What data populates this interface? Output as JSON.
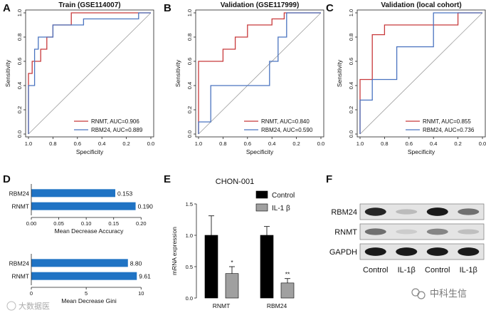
{
  "chart_data": [
    {
      "panel": "A",
      "type": "line",
      "title": "Train (GSE114007)",
      "xlabel": "Specificity",
      "ylabel": "Sensitivity",
      "xlim": [
        1.0,
        0.0
      ],
      "ylim": [
        0.0,
        1.0
      ],
      "xticks": [
        "1.0",
        "0.8",
        "0.6",
        "0.4",
        "0.2",
        "0.0"
      ],
      "yticks": [
        "0.0",
        "0.2",
        "0.4",
        "0.6",
        "0.8",
        "1.0"
      ],
      "legend_position": "bottom-right",
      "series": [
        {
          "name": "RNMT, AUC=0.906",
          "color": "#c8393b",
          "x": [
            1.0,
            1.0,
            0.97,
            0.97,
            0.9,
            0.9,
            0.85,
            0.85,
            0.8,
            0.8,
            0.65,
            0.65,
            0.0
          ],
          "y": [
            0.0,
            0.5,
            0.5,
            0.6,
            0.6,
            0.7,
            0.7,
            0.8,
            0.8,
            0.9,
            0.9,
            1.0,
            1.0
          ]
        },
        {
          "name": "RBM24, AUC=0.889",
          "color": "#4a73c0",
          "x": [
            1.0,
            1.0,
            0.95,
            0.95,
            0.92,
            0.92,
            0.8,
            0.8,
            0.55,
            0.55,
            0.1,
            0.1,
            0.0
          ],
          "y": [
            0.0,
            0.4,
            0.4,
            0.7,
            0.7,
            0.8,
            0.8,
            0.9,
            0.9,
            0.95,
            0.95,
            1.0,
            1.0
          ]
        }
      ]
    },
    {
      "panel": "B",
      "type": "line",
      "title": "Validation (GSE117999)",
      "xlabel": "Specificity",
      "ylabel": "Sensitivity",
      "xlim": [
        1.0,
        0.0
      ],
      "ylim": [
        0.0,
        1.0
      ],
      "xticks": [
        "1.0",
        "0.8",
        "0.6",
        "0.4",
        "0.2",
        "0.0"
      ],
      "yticks": [
        "0.0",
        "0.2",
        "0.4",
        "0.6",
        "0.8",
        "1.0"
      ],
      "legend_position": "bottom-right",
      "series": [
        {
          "name": "RNMT, AUC=0.840",
          "color": "#c8393b",
          "x": [
            1.0,
            1.0,
            0.8,
            0.8,
            0.7,
            0.7,
            0.6,
            0.6,
            0.4,
            0.4,
            0.3,
            0.3,
            0.0
          ],
          "y": [
            0.0,
            0.6,
            0.6,
            0.7,
            0.7,
            0.8,
            0.8,
            0.9,
            0.9,
            0.95,
            0.95,
            1.0,
            1.0
          ]
        },
        {
          "name": "RBM24, AUC=0.590",
          "color": "#4a73c0",
          "x": [
            1.0,
            1.0,
            0.9,
            0.9,
            0.42,
            0.42,
            0.35,
            0.35,
            0.28,
            0.28,
            0.0
          ],
          "y": [
            0.0,
            0.1,
            0.1,
            0.4,
            0.4,
            0.6,
            0.6,
            0.8,
            0.8,
            1.0,
            1.0
          ]
        }
      ]
    },
    {
      "panel": "C",
      "type": "line",
      "title": "Validation (local cohort)",
      "xlabel": "Specificity",
      "ylabel": "Sensitivity",
      "xlim": [
        1.0,
        0.0
      ],
      "ylim": [
        0.0,
        1.0
      ],
      "xticks": [
        "1.0",
        "0.8",
        "0.6",
        "0.4",
        "0.2",
        "0.0"
      ],
      "yticks": [
        "0.0",
        "0.2",
        "0.4",
        "0.6",
        "0.8",
        "1.0"
      ],
      "legend_position": "bottom-right",
      "series": [
        {
          "name": "RNMT, AUC=0.855",
          "color": "#c8393b",
          "x": [
            1.0,
            1.0,
            0.9,
            0.9,
            0.8,
            0.8,
            0.2,
            0.2,
            0.0
          ],
          "y": [
            0.0,
            0.45,
            0.45,
            0.82,
            0.82,
            0.9,
            0.9,
            1.0,
            1.0
          ]
        },
        {
          "name": "RBM24, AUC=0.736",
          "color": "#4a73c0",
          "x": [
            1.0,
            1.0,
            0.9,
            0.9,
            0.7,
            0.7,
            0.4,
            0.4,
            0.0
          ],
          "y": [
            0.0,
            0.28,
            0.28,
            0.45,
            0.45,
            0.72,
            0.72,
            1.0,
            1.0
          ]
        }
      ]
    },
    {
      "panel": "D",
      "type": "bar",
      "orientation": "horizontal",
      "xlabel": "Mean Decrease Accuracy",
      "xlim": [
        0.0,
        0.21
      ],
      "xticks": [
        "0.00",
        "0.05",
        "0.10",
        "0.15",
        "0.20"
      ],
      "categories": [
        "RBM24",
        "RNMT"
      ],
      "values": [
        0.153,
        0.19
      ],
      "value_labels": [
        "0.153",
        "0.190"
      ],
      "color": "#1f73c4"
    },
    {
      "panel": "D",
      "type": "bar",
      "orientation": "horizontal",
      "xlabel": "Mean Decrease Gini",
      "xlim": [
        0,
        10.5
      ],
      "xticks": [
        "0",
        "5",
        "10"
      ],
      "categories": [
        "RBM24",
        "RNMT"
      ],
      "values": [
        8.8,
        9.61
      ],
      "value_labels": [
        "8.80",
        "9.61"
      ],
      "color": "#1f73c4"
    },
    {
      "panel": "E",
      "type": "bar",
      "title": "CHON-001",
      "ylabel": "mRNA expression",
      "ylim": [
        0.0,
        1.5
      ],
      "yticks": [
        "0.0",
        "0.5",
        "1.0",
        "1.5"
      ],
      "categories": [
        "RNMT",
        "RBM24"
      ],
      "legend_position": "top-right",
      "series": [
        {
          "name": "Control",
          "color": "#000000",
          "values": [
            1.0,
            1.0
          ],
          "errors": [
            0.31,
            0.14
          ]
        },
        {
          "name": "IL-1 β",
          "color": "#a0a0a0",
          "values": [
            0.39,
            0.24
          ],
          "errors": [
            0.11,
            0.07
          ]
        }
      ],
      "significance": [
        "*",
        "**"
      ]
    }
  ],
  "panel_f": {
    "label": "F",
    "rows": [
      {
        "name": "RBM24",
        "intensity": [
          0.9,
          0.2,
          0.95,
          0.55
        ]
      },
      {
        "name": "RNMT",
        "intensity": [
          0.55,
          0.12,
          0.45,
          0.18
        ]
      },
      {
        "name": "GAPDH",
        "intensity": [
          0.95,
          0.95,
          0.95,
          0.95
        ]
      }
    ],
    "lanes": [
      "Control",
      "IL-1β",
      "Control",
      "IL-1β"
    ]
  },
  "watermarks": {
    "left": "大数据医",
    "right": "中科生信"
  }
}
